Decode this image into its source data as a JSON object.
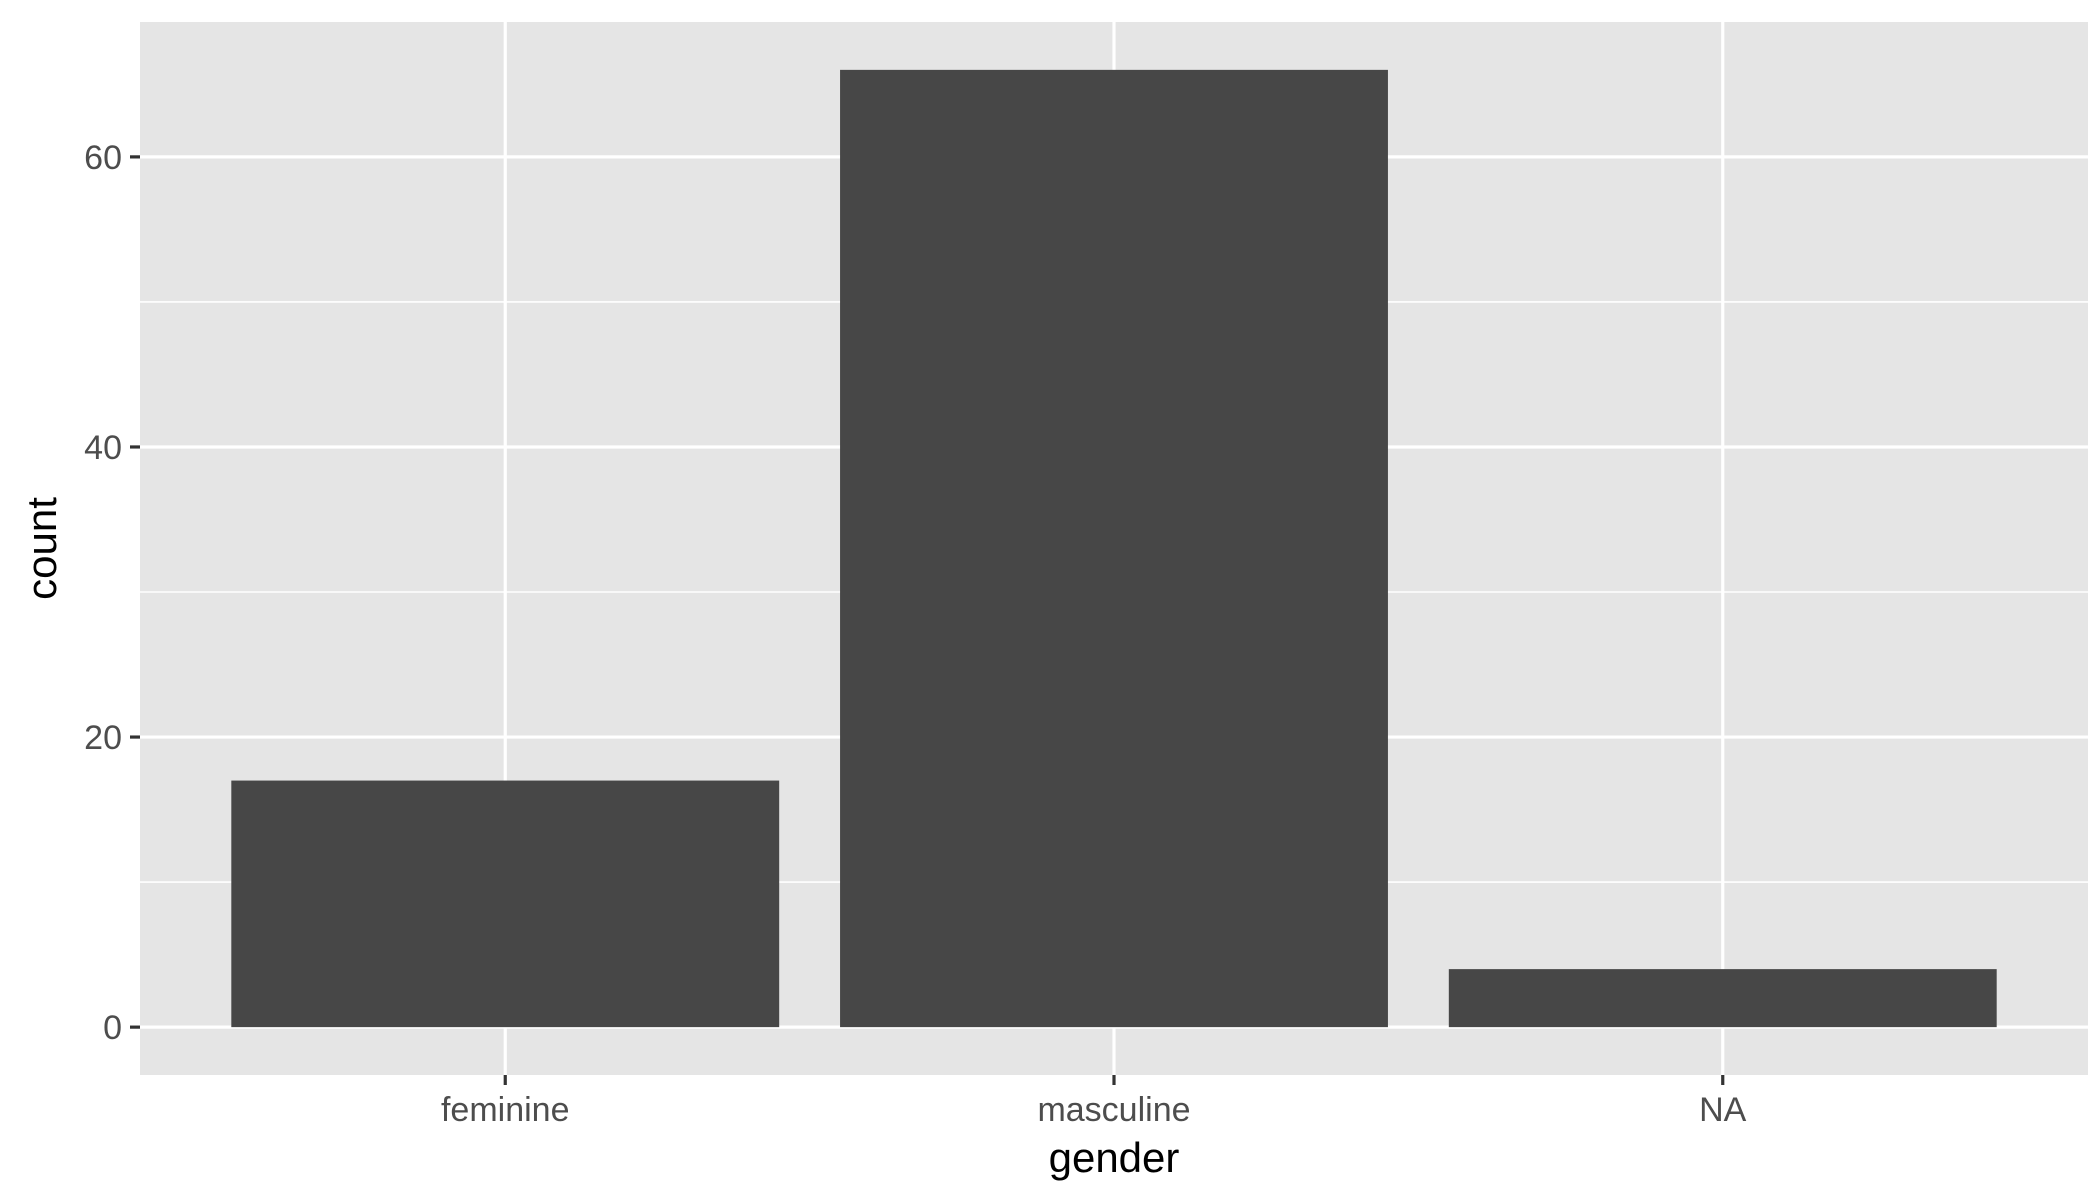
{
  "chart_data": {
    "type": "bar",
    "categories": [
      "feminine",
      "masculine",
      "NA"
    ],
    "values": [
      17,
      66,
      4
    ],
    "xlabel": "gender",
    "ylabel": "count",
    "ylim": [
      -3.3,
      69.3
    ],
    "y_ticks": [
      0,
      20,
      40,
      60
    ],
    "y_minor_ticks": [
      10,
      30,
      50
    ],
    "grid": true,
    "legend": "none",
    "colors": {
      "panel_background": "#e5e5e5",
      "grid_line": "#ffffff",
      "bar_fill": "#474747",
      "tick_mark": "#333333",
      "tick_label": "#4d4d4d",
      "axis_title": "#000000"
    }
  }
}
